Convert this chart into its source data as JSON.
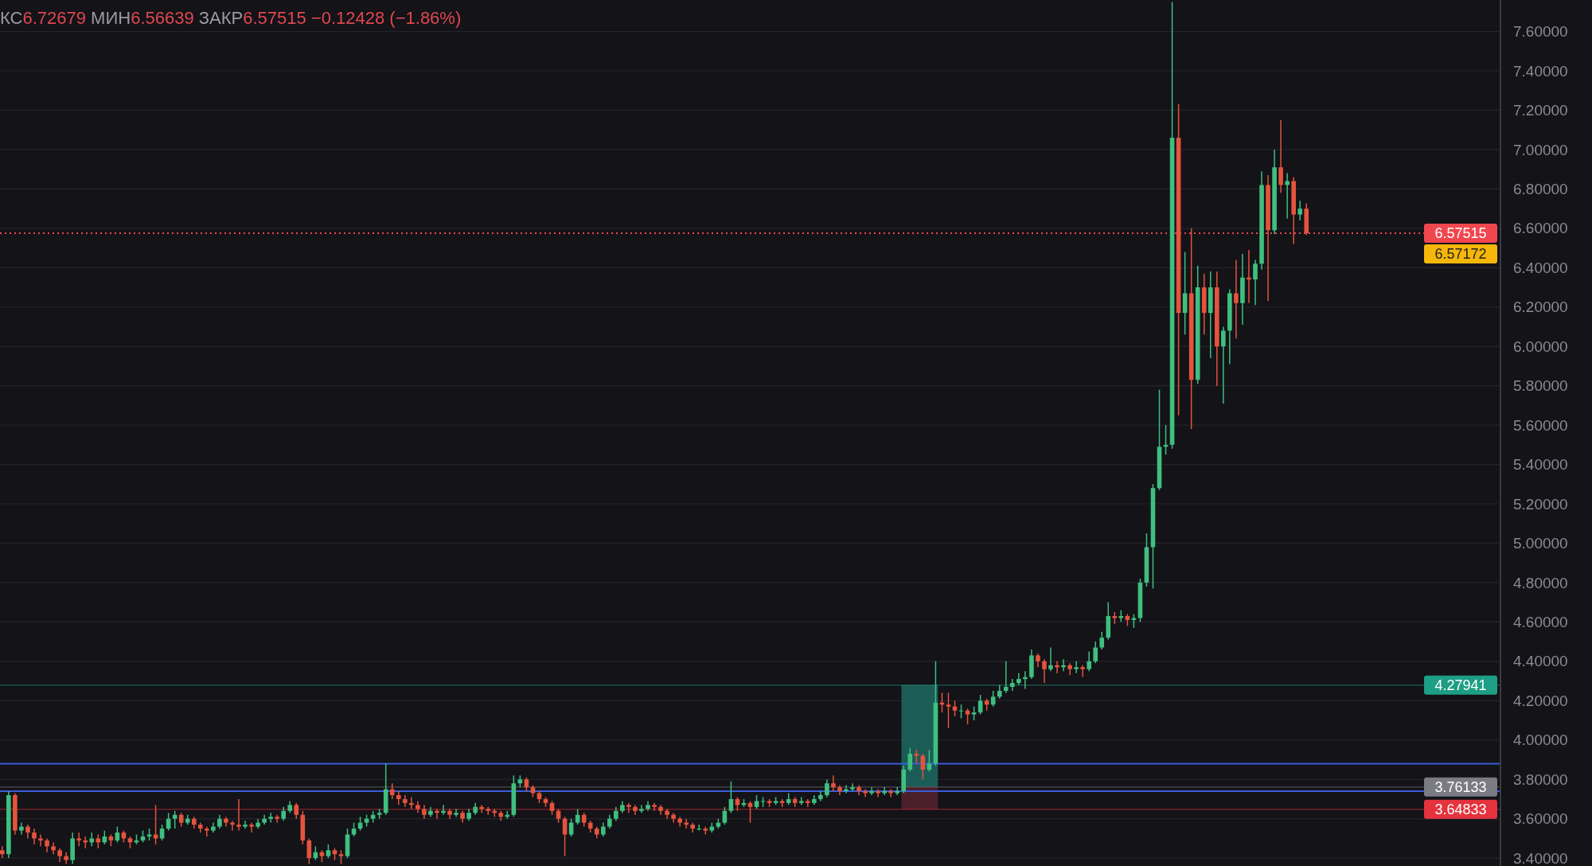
{
  "chart_data": {
    "type": "candlestick",
    "title": "КС6.72679 МИН6.56639 ЗАКР6.57515 −0.12428 (−1.86%)",
    "categories": [
      null,
      null,
      null,
      null,
      null,
      null,
      null,
      null,
      null,
      null,
      null,
      null,
      null,
      null,
      null,
      null,
      null,
      null,
      null,
      null,
      null,
      null,
      null,
      null,
      null,
      null,
      null,
      null,
      null,
      null,
      null,
      null,
      null,
      null,
      null,
      null,
      null,
      null,
      null,
      null,
      null,
      null,
      null,
      null,
      null,
      null,
      null,
      null,
      null,
      null,
      null,
      null,
      null,
      null,
      null,
      null,
      null,
      null,
      null,
      null,
      null,
      null,
      null,
      null,
      null,
      null,
      null,
      null,
      null,
      null,
      null,
      null,
      null,
      null,
      null,
      null,
      null,
      null,
      null,
      null,
      null,
      null,
      null,
      null,
      null,
      null,
      null,
      null,
      null,
      null,
      null,
      null,
      null,
      null,
      null,
      null,
      null,
      null,
      null,
      null,
      null,
      null,
      null,
      null,
      null,
      null,
      null,
      null,
      null,
      null,
      null,
      null,
      null,
      null,
      null,
      null,
      null,
      null,
      null,
      null,
      null,
      null,
      null,
      null,
      null,
      null,
      null,
      null,
      null,
      null,
      null,
      null,
      null,
      null,
      null,
      null,
      null,
      null,
      null,
      null,
      null,
      null,
      null,
      null,
      null,
      null,
      null,
      null,
      null,
      null,
      null,
      null,
      null,
      null,
      null,
      null,
      null,
      null,
      null,
      null,
      null,
      null,
      null,
      null,
      null,
      null,
      null,
      null,
      null,
      null,
      null,
      null,
      null,
      null,
      null,
      null,
      null,
      null,
      null,
      null,
      null,
      null,
      null,
      null,
      null,
      null,
      null,
      null,
      null,
      null,
      null,
      null,
      null,
      null,
      null,
      null,
      null,
      null,
      null,
      null,
      null,
      null,
      null,
      null,
      null,
      null,
      null,
      null,
      null,
      null,
      null,
      null,
      null,
      null,
      null,
      null,
      null,
      null,
      null,
      null,
      null,
      null,
      null,
      null,
      null,
      null,
      null,
      null,
      null,
      null,
      null,
      null,
      null,
      null,
      null
    ],
    "ohlc": [
      [
        3.44,
        3.46,
        3.4,
        3.42
      ],
      [
        3.42,
        3.74,
        3.4,
        3.72
      ],
      [
        3.72,
        3.73,
        3.52,
        3.54
      ],
      [
        3.54,
        3.58,
        3.52,
        3.56
      ],
      [
        3.56,
        3.57,
        3.5,
        3.53
      ],
      [
        3.53,
        3.55,
        3.47,
        3.5
      ],
      [
        3.5,
        3.52,
        3.46,
        3.49
      ],
      [
        3.49,
        3.5,
        3.43,
        3.46
      ],
      [
        3.46,
        3.48,
        3.42,
        3.44
      ],
      [
        3.44,
        3.45,
        3.38,
        3.41
      ],
      [
        3.41,
        3.43,
        3.37,
        3.39
      ],
      [
        3.39,
        3.53,
        3.37,
        3.5
      ],
      [
        3.5,
        3.53,
        3.46,
        3.49
      ],
      [
        3.49,
        3.51,
        3.45,
        3.48
      ],
      [
        3.48,
        3.53,
        3.46,
        3.5
      ],
      [
        3.5,
        3.52,
        3.45,
        3.48
      ],
      [
        3.48,
        3.54,
        3.47,
        3.51
      ],
      [
        3.51,
        3.52,
        3.46,
        3.49
      ],
      [
        3.49,
        3.56,
        3.48,
        3.53
      ],
      [
        3.53,
        3.54,
        3.48,
        3.5
      ],
      [
        3.5,
        3.51,
        3.45,
        3.48
      ],
      [
        3.48,
        3.52,
        3.47,
        3.49
      ],
      [
        3.49,
        3.54,
        3.48,
        3.51
      ],
      [
        3.51,
        3.55,
        3.49,
        3.52
      ],
      [
        3.52,
        3.67,
        3.47,
        3.5
      ],
      [
        3.5,
        3.57,
        3.49,
        3.55
      ],
      [
        3.55,
        3.63,
        3.54,
        3.6
      ],
      [
        3.6,
        3.64,
        3.55,
        3.62
      ],
      [
        3.62,
        3.63,
        3.56,
        3.58
      ],
      [
        3.58,
        3.62,
        3.57,
        3.6
      ],
      [
        3.6,
        3.61,
        3.55,
        3.57
      ],
      [
        3.57,
        3.58,
        3.53,
        3.55
      ],
      [
        3.55,
        3.56,
        3.51,
        3.54
      ],
      [
        3.54,
        3.58,
        3.53,
        3.56
      ],
      [
        3.56,
        3.62,
        3.55,
        3.6
      ],
      [
        3.6,
        3.61,
        3.56,
        3.58
      ],
      [
        3.58,
        3.59,
        3.54,
        3.57
      ],
      [
        3.57,
        3.7,
        3.54,
        3.56
      ],
      [
        3.56,
        3.59,
        3.55,
        3.57
      ],
      [
        3.57,
        3.58,
        3.53,
        3.56
      ],
      [
        3.56,
        3.6,
        3.55,
        3.58
      ],
      [
        3.58,
        3.62,
        3.57,
        3.6
      ],
      [
        3.6,
        3.63,
        3.58,
        3.61
      ],
      [
        3.61,
        3.62,
        3.58,
        3.6
      ],
      [
        3.6,
        3.66,
        3.59,
        3.64
      ],
      [
        3.64,
        3.69,
        3.63,
        3.67
      ],
      [
        3.67,
        3.68,
        3.6,
        3.62
      ],
      [
        3.62,
        3.64,
        3.47,
        3.49
      ],
      [
        3.49,
        3.5,
        3.37,
        3.4
      ],
      [
        3.4,
        3.46,
        3.39,
        3.43
      ],
      [
        3.43,
        3.44,
        3.38,
        3.41
      ],
      [
        3.41,
        3.47,
        3.4,
        3.44
      ],
      [
        3.44,
        3.45,
        3.39,
        3.42
      ],
      [
        3.42,
        3.44,
        3.37,
        3.41
      ],
      [
        3.41,
        3.55,
        3.4,
        3.52
      ],
      [
        3.52,
        3.58,
        3.51,
        3.55
      ],
      [
        3.55,
        3.61,
        3.54,
        3.58
      ],
      [
        3.58,
        3.62,
        3.56,
        3.6
      ],
      [
        3.6,
        3.64,
        3.58,
        3.62
      ],
      [
        3.62,
        3.65,
        3.6,
        3.63
      ],
      [
        3.63,
        3.88,
        3.62,
        3.75
      ],
      [
        3.75,
        3.78,
        3.7,
        3.72
      ],
      [
        3.72,
        3.74,
        3.67,
        3.7
      ],
      [
        3.7,
        3.72,
        3.66,
        3.68
      ],
      [
        3.68,
        3.71,
        3.65,
        3.67
      ],
      [
        3.67,
        3.69,
        3.63,
        3.65
      ],
      [
        3.65,
        3.67,
        3.6,
        3.62
      ],
      [
        3.62,
        3.66,
        3.61,
        3.64
      ],
      [
        3.64,
        3.65,
        3.6,
        3.63
      ],
      [
        3.63,
        3.67,
        3.62,
        3.64
      ],
      [
        3.64,
        3.65,
        3.6,
        3.62
      ],
      [
        3.62,
        3.65,
        3.61,
        3.63
      ],
      [
        3.63,
        3.64,
        3.58,
        3.6
      ],
      [
        3.6,
        3.65,
        3.59,
        3.63
      ],
      [
        3.63,
        3.68,
        3.62,
        3.66
      ],
      [
        3.66,
        3.67,
        3.63,
        3.65
      ],
      [
        3.65,
        3.66,
        3.62,
        3.64
      ],
      [
        3.64,
        3.65,
        3.61,
        3.63
      ],
      [
        3.63,
        3.64,
        3.59,
        3.61
      ],
      [
        3.61,
        3.64,
        3.6,
        3.62
      ],
      [
        3.62,
        3.82,
        3.61,
        3.78
      ],
      [
        3.78,
        3.82,
        3.76,
        3.8
      ],
      [
        3.8,
        3.81,
        3.74,
        3.76
      ],
      [
        3.76,
        3.77,
        3.71,
        3.73
      ],
      [
        3.73,
        3.74,
        3.68,
        3.7
      ],
      [
        3.7,
        3.71,
        3.66,
        3.68
      ],
      [
        3.68,
        3.69,
        3.62,
        3.64
      ],
      [
        3.64,
        3.65,
        3.58,
        3.6
      ],
      [
        3.6,
        3.61,
        3.41,
        3.52
      ],
      [
        3.52,
        3.6,
        3.51,
        3.58
      ],
      [
        3.58,
        3.65,
        3.57,
        3.62
      ],
      [
        3.62,
        3.63,
        3.56,
        3.58
      ],
      [
        3.58,
        3.59,
        3.53,
        3.55
      ],
      [
        3.55,
        3.56,
        3.5,
        3.52
      ],
      [
        3.52,
        3.58,
        3.51,
        3.56
      ],
      [
        3.56,
        3.62,
        3.55,
        3.6
      ],
      [
        3.6,
        3.66,
        3.59,
        3.64
      ],
      [
        3.64,
        3.69,
        3.63,
        3.67
      ],
      [
        3.67,
        3.68,
        3.63,
        3.66
      ],
      [
        3.66,
        3.67,
        3.62,
        3.64
      ],
      [
        3.64,
        3.67,
        3.63,
        3.65
      ],
      [
        3.65,
        3.69,
        3.64,
        3.67
      ],
      [
        3.67,
        3.68,
        3.64,
        3.66
      ],
      [
        3.66,
        3.67,
        3.62,
        3.64
      ],
      [
        3.64,
        3.65,
        3.6,
        3.62
      ],
      [
        3.62,
        3.63,
        3.58,
        3.6
      ],
      [
        3.6,
        3.61,
        3.56,
        3.58
      ],
      [
        3.58,
        3.6,
        3.55,
        3.57
      ],
      [
        3.57,
        3.58,
        3.53,
        3.55
      ],
      [
        3.55,
        3.57,
        3.54,
        3.55
      ],
      [
        3.55,
        3.56,
        3.52,
        3.54
      ],
      [
        3.54,
        3.58,
        3.53,
        3.56
      ],
      [
        3.56,
        3.6,
        3.55,
        3.58
      ],
      [
        3.58,
        3.66,
        3.57,
        3.64
      ],
      [
        3.64,
        3.79,
        3.63,
        3.7
      ],
      [
        3.7,
        3.71,
        3.64,
        3.67
      ],
      [
        3.67,
        3.7,
        3.66,
        3.68
      ],
      [
        3.68,
        3.69,
        3.58,
        3.66
      ],
      [
        3.66,
        3.72,
        3.65,
        3.69
      ],
      [
        3.69,
        3.71,
        3.66,
        3.69
      ],
      [
        3.69,
        3.7,
        3.66,
        3.68
      ],
      [
        3.68,
        3.71,
        3.67,
        3.69
      ],
      [
        3.69,
        3.7,
        3.66,
        3.68
      ],
      [
        3.68,
        3.73,
        3.67,
        3.7
      ],
      [
        3.7,
        3.71,
        3.66,
        3.68
      ],
      [
        3.68,
        3.71,
        3.67,
        3.69
      ],
      [
        3.69,
        3.7,
        3.66,
        3.68
      ],
      [
        3.68,
        3.72,
        3.67,
        3.7
      ],
      [
        3.7,
        3.74,
        3.69,
        3.72
      ],
      [
        3.72,
        3.8,
        3.71,
        3.78
      ],
      [
        3.78,
        3.82,
        3.74,
        3.76
      ],
      [
        3.76,
        3.77,
        3.72,
        3.74
      ],
      [
        3.74,
        3.77,
        3.73,
        3.75
      ],
      [
        3.75,
        3.78,
        3.74,
        3.76
      ],
      [
        3.76,
        3.77,
        3.72,
        3.74
      ],
      [
        3.74,
        3.75,
        3.71,
        3.73
      ],
      [
        3.73,
        3.76,
        3.72,
        3.74
      ],
      [
        3.74,
        3.75,
        3.71,
        3.73
      ],
      [
        3.73,
        3.76,
        3.72,
        3.74
      ],
      [
        3.74,
        3.75,
        3.71,
        3.73
      ],
      [
        3.73,
        3.76,
        3.72,
        3.74
      ],
      [
        3.74,
        3.87,
        3.73,
        3.85
      ],
      [
        3.85,
        3.96,
        3.84,
        3.93
      ],
      [
        3.93,
        3.95,
        3.88,
        3.92
      ],
      [
        3.92,
        3.93,
        3.8,
        3.85
      ],
      [
        3.85,
        3.95,
        3.84,
        3.88
      ],
      [
        3.88,
        4.4,
        3.87,
        4.19
      ],
      [
        4.19,
        4.24,
        4.14,
        4.18
      ],
      [
        4.18,
        4.24,
        4.06,
        4.17
      ],
      [
        4.17,
        4.2,
        4.12,
        4.15
      ],
      [
        4.15,
        4.18,
        4.11,
        4.15
      ],
      [
        4.15,
        4.16,
        4.08,
        4.13
      ],
      [
        4.13,
        4.17,
        4.1,
        4.14
      ],
      [
        4.14,
        4.23,
        4.13,
        4.2
      ],
      [
        4.2,
        4.21,
        4.15,
        4.18
      ],
      [
        4.18,
        4.25,
        4.17,
        4.22
      ],
      [
        4.22,
        4.28,
        4.21,
        4.25
      ],
      [
        4.25,
        4.4,
        4.24,
        4.27
      ],
      [
        4.27,
        4.31,
        4.25,
        4.29
      ],
      [
        4.29,
        4.34,
        4.28,
        4.31
      ],
      [
        4.31,
        4.35,
        4.26,
        4.32
      ],
      [
        4.32,
        4.46,
        4.31,
        4.43
      ],
      [
        4.43,
        4.44,
        4.37,
        4.4
      ],
      [
        4.4,
        4.41,
        4.29,
        4.36
      ],
      [
        4.36,
        4.47,
        4.35,
        4.38
      ],
      [
        4.38,
        4.4,
        4.34,
        4.37
      ],
      [
        4.37,
        4.41,
        4.35,
        4.38
      ],
      [
        4.38,
        4.39,
        4.33,
        4.36
      ],
      [
        4.36,
        4.4,
        4.34,
        4.37
      ],
      [
        4.37,
        4.38,
        4.32,
        4.36
      ],
      [
        4.36,
        4.45,
        4.35,
        4.4
      ],
      [
        4.4,
        4.5,
        4.39,
        4.47
      ],
      [
        4.47,
        4.55,
        4.46,
        4.52
      ],
      [
        4.52,
        4.7,
        4.51,
        4.63
      ],
      [
        4.63,
        4.65,
        4.59,
        4.62
      ],
      [
        4.62,
        4.66,
        4.6,
        4.63
      ],
      [
        4.63,
        4.64,
        4.58,
        4.61
      ],
      [
        4.61,
        4.64,
        4.57,
        4.62
      ],
      [
        4.62,
        4.82,
        4.6,
        4.8
      ],
      [
        4.8,
        5.05,
        4.78,
        4.98
      ],
      [
        4.98,
        5.3,
        4.77,
        5.28
      ],
      [
        5.28,
        5.78,
        5.27,
        5.49
      ],
      [
        5.49,
        5.6,
        5.45,
        5.5
      ],
      [
        5.5,
        7.75,
        5.48,
        7.06
      ],
      [
        7.06,
        7.23,
        5.65,
        6.17
      ],
      [
        6.17,
        6.48,
        6.06,
        6.27
      ],
      [
        6.27,
        6.6,
        5.58,
        5.83
      ],
      [
        5.83,
        6.41,
        5.81,
        6.3
      ],
      [
        6.3,
        6.37,
        6.06,
        6.17
      ],
      [
        6.17,
        6.38,
        5.94,
        6.3
      ],
      [
        6.3,
        6.38,
        5.8,
        6.0
      ],
      [
        6.0,
        6.1,
        5.71,
        6.08
      ],
      [
        6.08,
        6.29,
        5.91,
        6.27
      ],
      [
        6.27,
        6.44,
        6.04,
        6.22
      ],
      [
        6.22,
        6.47,
        6.11,
        6.35
      ],
      [
        6.35,
        6.49,
        6.22,
        6.34
      ],
      [
        6.34,
        6.44,
        6.21,
        6.42
      ],
      [
        6.42,
        6.89,
        6.39,
        6.82
      ],
      [
        6.82,
        6.87,
        6.23,
        6.59
      ],
      [
        6.59,
        7.0,
        6.57,
        6.91
      ],
      [
        6.91,
        7.15,
        6.78,
        6.82
      ],
      [
        6.82,
        6.88,
        6.65,
        6.84
      ],
      [
        6.84,
        6.86,
        6.52,
        6.67
      ],
      [
        6.67,
        6.74,
        6.64,
        6.7
      ],
      [
        6.7,
        6.72679,
        6.56639,
        6.57515
      ],
      null,
      null,
      null,
      null,
      null,
      null,
      null,
      null,
      null,
      null,
      null,
      null,
      null,
      null,
      null,
      null,
      null,
      null,
      null,
      null,
      null,
      null,
      null,
      null,
      null,
      null,
      null,
      null,
      null,
      null
    ],
    "ylim": [
      3.36,
      7.76
    ],
    "yticks": [
      {
        "value": 3.4,
        "label": "3.40000"
      },
      {
        "value": 3.6,
        "label": "3.60000"
      },
      {
        "value": 3.8,
        "label": "3.80000"
      },
      {
        "value": 4.0,
        "label": "4.00000"
      },
      {
        "value": 4.2,
        "label": "4.20000"
      },
      {
        "value": 4.4,
        "label": "4.40000"
      },
      {
        "value": 4.6,
        "label": "4.60000"
      },
      {
        "value": 4.8,
        "label": "4.80000"
      },
      {
        "value": 5.0,
        "label": "5.00000"
      },
      {
        "value": 5.2,
        "label": "5.20000"
      },
      {
        "value": 5.4,
        "label": "5.40000"
      },
      {
        "value": 5.6,
        "label": "5.60000"
      },
      {
        "value": 5.8,
        "label": "5.80000"
      },
      {
        "value": 6.0,
        "label": "6.00000"
      },
      {
        "value": 6.2,
        "label": "6.20000"
      },
      {
        "value": 6.4,
        "label": "6.40000"
      },
      {
        "value": 6.6,
        "label": "6.60000"
      },
      {
        "value": 6.8,
        "label": "6.80000"
      },
      {
        "value": 7.0,
        "label": "7.00000"
      },
      {
        "value": 7.2,
        "label": "7.20000"
      },
      {
        "value": 7.4,
        "label": "7.40000"
      },
      {
        "value": 7.6,
        "label": "7.60000"
      }
    ],
    "grid": "y",
    "ref_lines": [
      {
        "axis": "y",
        "value": 6.57515,
        "label": "6.57515",
        "color": "#f0474f",
        "line_style": "dotted"
      },
      {
        "axis": "y",
        "value": 3.88,
        "color": "#3a5bd9",
        "line_style": "solid"
      },
      {
        "axis": "y",
        "value": 3.74,
        "color": "#3a5bd9",
        "line_style": "solid"
      },
      {
        "axis": "y",
        "value": 4.27941,
        "label": "4.27941",
        "color": "#1e9e84",
        "line_style": "solid"
      },
      {
        "axis": "y",
        "value": 3.76133,
        "label": "3.76133",
        "color": "#7b7b83",
        "line_style": "solid"
      },
      {
        "axis": "y",
        "value": 3.64833,
        "label": "3.64833",
        "color": "#e5333e",
        "line_style": "solid"
      }
    ],
    "annotations": [
      "6.57172"
    ]
  }
}
